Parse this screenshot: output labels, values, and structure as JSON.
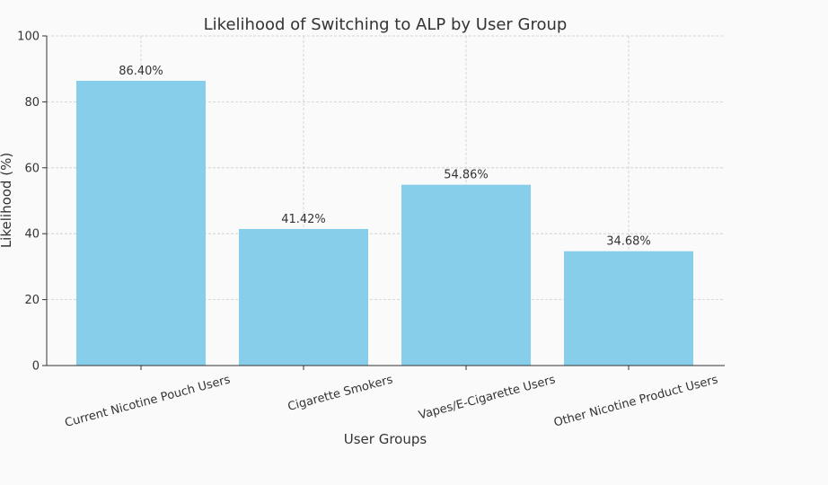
{
  "chart_data": {
    "type": "bar",
    "title": "Likelihood of Switching to ALP by User Group",
    "xlabel": "User Groups",
    "ylabel": "Likelihood (%)",
    "categories": [
      "Current Nicotine Pouch Users",
      "Cigarette Smokers",
      "Vapes/E-Cigarette Users",
      "Other Nicotine Product Users"
    ],
    "values": [
      86.4,
      41.42,
      54.86,
      34.68
    ],
    "data_labels": [
      "86.40%",
      "41.42%",
      "54.86%",
      "34.68%"
    ],
    "ylim": [
      0,
      100
    ],
    "yticks": [
      "0",
      "20",
      "40",
      "60",
      "80",
      "100"
    ],
    "grid": true,
    "bar_color": "#87ceeb",
    "x_tick_rotation": "15 degrees"
  }
}
